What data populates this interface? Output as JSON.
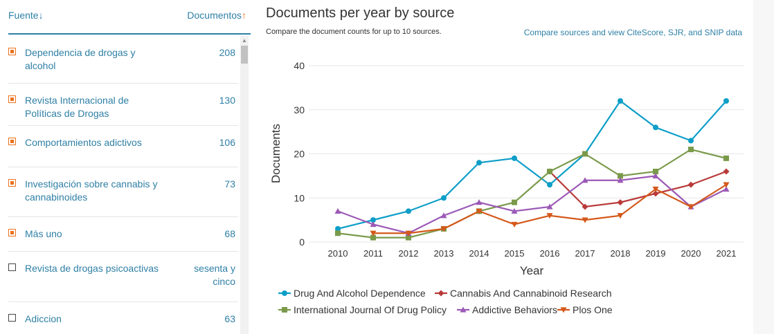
{
  "sources_list": {
    "header_source": "Fuente",
    "header_documents": "Documentos",
    "items": [
      {
        "label": "Dependencia de drogas y alcohol",
        "count": "208",
        "checked": true
      },
      {
        "label": "Revista Internacional de Políticas de Drogas",
        "count": "130",
        "checked": true
      },
      {
        "label": "Comportamientos adictivos",
        "count": "106",
        "checked": true
      },
      {
        "label": "Investigación sobre cannabis y cannabinoides",
        "count": "73",
        "checked": true
      },
      {
        "label": "Más uno",
        "count": "68",
        "checked": true
      },
      {
        "label": "Revista de drogas psicoactivas",
        "count": "sesenta y cinco",
        "checked": false
      },
      {
        "label": "Adiccion",
        "count": "63",
        "checked": false
      }
    ]
  },
  "chart_panel": {
    "title": "Documents per year by source",
    "subtitle": "Compare the document counts for up to 10 sources.",
    "compare_link": "Compare sources and view CiteScore, SJR, and SNIP data"
  },
  "chart_data": {
    "type": "line",
    "xlabel": "Year",
    "ylabel": "Documents",
    "ylim": [
      0,
      40
    ],
    "yticks": [
      0,
      10,
      20,
      30,
      40
    ],
    "x": [
      "2010",
      "2011",
      "2012",
      "2013",
      "2014",
      "2015",
      "2016",
      "2017",
      "2018",
      "2019",
      "2020",
      "2021"
    ],
    "grid": true,
    "legend_position": "bottom",
    "series": [
      {
        "name": "Drug And Alcohol Dependence",
        "color": "#0d9ec8",
        "marker": "circle",
        "values": [
          3,
          5,
          7,
          10,
          18,
          19,
          13,
          20,
          32,
          26,
          23,
          32
        ]
      },
      {
        "name": "Cannabis And Cannabinoid Research",
        "color": "#b93a3a",
        "marker": "diamond",
        "values": [
          null,
          null,
          null,
          null,
          null,
          null,
          16,
          8,
          9,
          11,
          13,
          16
        ]
      },
      {
        "name": "International Journal Of Drug Policy",
        "color": "#7a9a4a",
        "marker": "square",
        "values": [
          2,
          1,
          1,
          3,
          7,
          9,
          16,
          20,
          15,
          16,
          21,
          19
        ]
      },
      {
        "name": "Addictive Behaviors",
        "color": "#9b59b6",
        "marker": "triangle-up",
        "values": [
          7,
          4,
          2,
          6,
          9,
          7,
          8,
          14,
          14,
          15,
          8,
          12
        ]
      },
      {
        "name": "Plos One",
        "color": "#d4581a",
        "marker": "triangle-down",
        "values": [
          null,
          2,
          2,
          3,
          7,
          4,
          6,
          5,
          6,
          12,
          8,
          13
        ]
      }
    ]
  }
}
